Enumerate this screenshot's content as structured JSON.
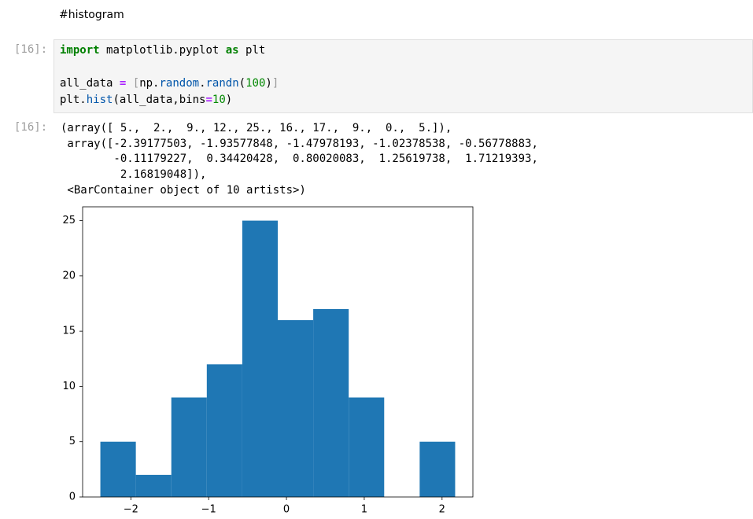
{
  "markdown": "#histogram",
  "input": {
    "prompt": "[16]:",
    "lines": [
      [
        "import",
        "matplotlib.pyplot",
        "as",
        "plt"
      ],
      [
        "all_data",
        "=",
        "[",
        "np.",
        "random",
        ".",
        "randn",
        "(",
        "100",
        ")",
        "]"
      ],
      [
        "plt.",
        "hist",
        "(all_data,bins",
        "=",
        "10",
        ")"
      ]
    ]
  },
  "output": {
    "prompt": "[16]:",
    "lines": [
      "(array([ 5.,  2.,  9., 12., 25., 16., 17.,  9.,  0.,  5.]),",
      " array([-2.39177503, -1.93577848, -1.47978193, -1.02378538, -0.56778883,",
      "        -0.11179227,  0.34420428,  0.80020083,  1.25619738,  1.71219393,",
      "         2.16819048]),",
      " <BarContainer object of 10 artists>)"
    ]
  },
  "chart_data": {
    "type": "histogram",
    "color": "#1f77b4",
    "bins": [
      -2.39177503,
      -1.93577848,
      -1.47978193,
      -1.02378538,
      -0.56778883,
      -0.11179227,
      0.34420428,
      0.80020083,
      1.25619738,
      1.71219393,
      2.16819048
    ],
    "values": [
      5,
      2,
      9,
      12,
      25,
      16,
      17,
      9,
      0,
      5
    ],
    "xlim": [
      -2.6198,
      2.3962
    ],
    "ylim": [
      0,
      26.25
    ],
    "xticks": [
      {
        "value": -2,
        "label": "−2"
      },
      {
        "value": -1,
        "label": "−1"
      },
      0,
      1,
      2
    ],
    "yticks": [
      0,
      5,
      10,
      15,
      20,
      25
    ]
  }
}
